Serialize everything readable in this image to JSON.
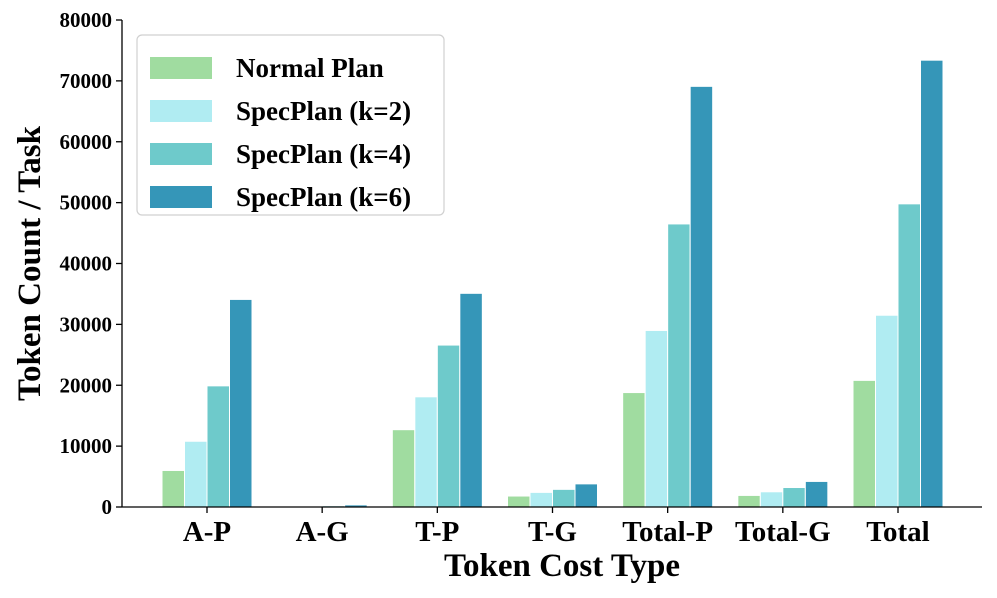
{
  "chart_data": {
    "type": "bar",
    "title": "",
    "xlabel": "Token Cost Type",
    "ylabel": "Token Count / Task",
    "ylim": [
      0,
      80000
    ],
    "yticks": [
      0,
      10000,
      20000,
      30000,
      40000,
      50000,
      60000,
      70000,
      80000
    ],
    "grid": false,
    "legend_position": "top-left",
    "categories": [
      "A-P",
      "A-G",
      "T-P",
      "T-G",
      "Total-P",
      "Total-G",
      "Total"
    ],
    "series": [
      {
        "name": "Normal Plan",
        "color": "#a0dca0",
        "values": [
          6000,
          50,
          12700,
          1800,
          18800,
          1900,
          20800
        ]
      },
      {
        "name": "SpecPlan (k=2)",
        "color": "#b0ecf2",
        "values": [
          10800,
          100,
          18100,
          2400,
          29000,
          2500,
          31500
        ]
      },
      {
        "name": "SpecPlan (k=4)",
        "color": "#6ecacb",
        "values": [
          19900,
          200,
          26600,
          2900,
          46500,
          3200,
          49800
        ]
      },
      {
        "name": "SpecPlan (k=6)",
        "color": "#3596b8",
        "values": [
          34100,
          350,
          35100,
          3800,
          69100,
          4200,
          73400
        ]
      }
    ]
  }
}
